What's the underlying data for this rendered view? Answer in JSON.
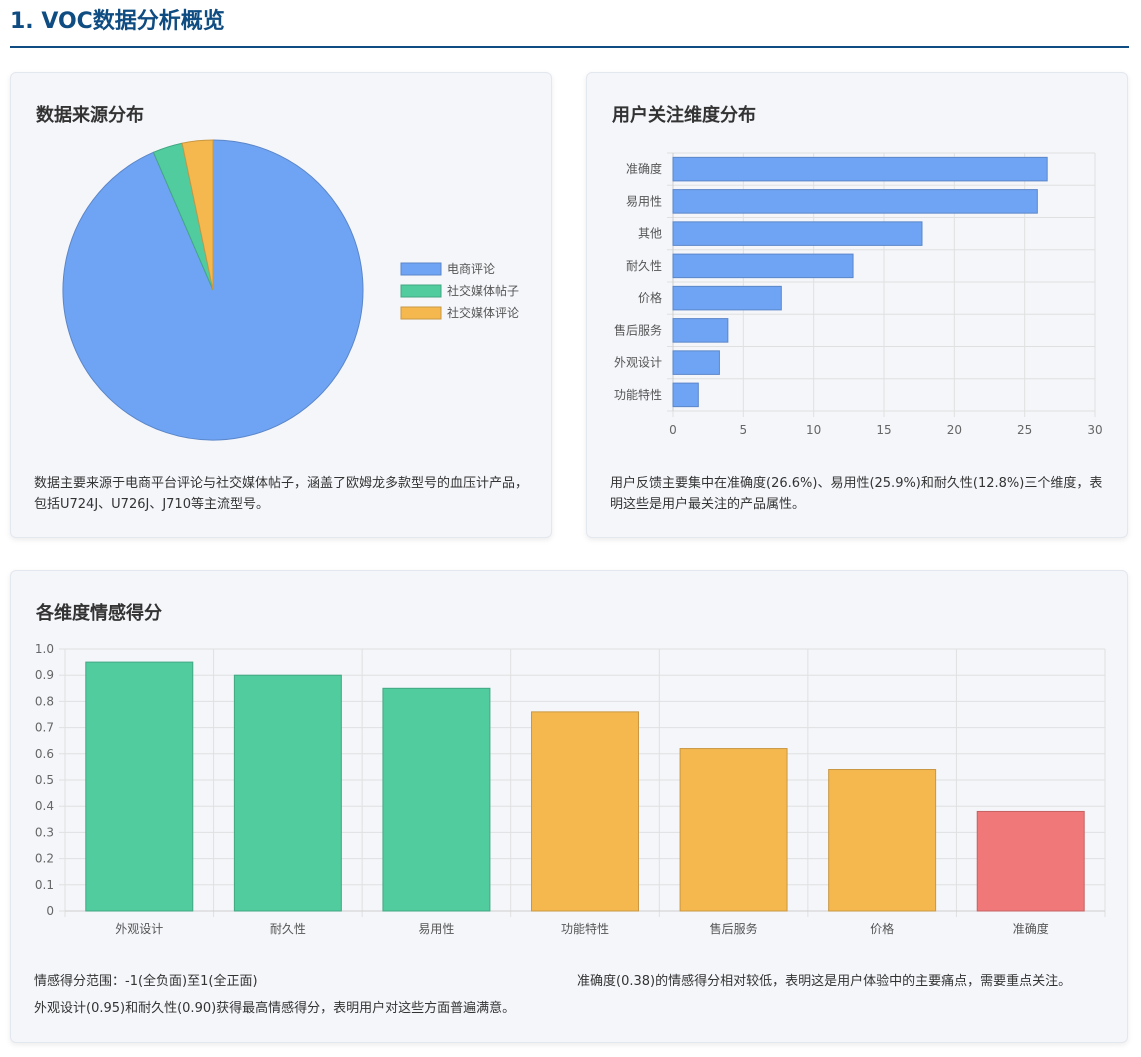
{
  "page": {
    "title": "1. VOC数据分析概览"
  },
  "colors": {
    "title": "#0f4c81",
    "blue": "#6fa4f4",
    "green": "#50cc9f",
    "orange": "#f5b84f",
    "red": "#f07878"
  },
  "source_card": {
    "title": "数据来源分布",
    "description": "数据主要来源于电商平台评论与社交媒体帖子，涵盖了欧姆龙多款型号的血压计产品，包括U724J、U726J、J710等主流型号。"
  },
  "dimension_card": {
    "title": "用户关注维度分布",
    "description": "用户反馈主要集中在准确度(26.6%)、易用性(25.9%)和耐久性(12.8%)三个维度，表明这些是用户最关注的产品属性。"
  },
  "sentiment_card": {
    "title": "各维度情感得分",
    "note_range": "情感得分范围：-1(全负面)至1(全正面)",
    "note_high": "外观设计(0.95)和耐久性(0.90)获得最高情感得分，表明用户对这些方面普遍满意。",
    "note_low": "准确度(0.38)的情感得分相对较低，表明这是用户体验中的主要痛点，需要重点关注。"
  },
  "chart_data": [
    {
      "type": "pie",
      "categories": [
        "电商评论",
        "社交媒体帖子",
        "社交媒体评论"
      ],
      "values": [
        93.5,
        3.2,
        3.3
      ],
      "colors": [
        "#6fa4f4",
        "#50cc9f",
        "#f5b84f"
      ],
      "legend": "right"
    },
    {
      "type": "bar",
      "orientation": "horizontal",
      "categories": [
        "准确度",
        "易用性",
        "其他",
        "耐久性",
        "价格",
        "售后服务",
        "外观设计",
        "功能特性"
      ],
      "values": [
        26.6,
        25.9,
        17.7,
        12.8,
        7.7,
        3.9,
        3.3,
        1.8
      ],
      "xlim": [
        0,
        30
      ],
      "xticks": [
        0,
        5,
        10,
        15,
        20,
        25,
        30
      ],
      "grid": true,
      "color": "#6fa4f4"
    },
    {
      "type": "bar",
      "categories": [
        "外观设计",
        "耐久性",
        "易用性",
        "功能特性",
        "售后服务",
        "价格",
        "准确度"
      ],
      "values": [
        0.95,
        0.9,
        0.85,
        0.76,
        0.62,
        0.54,
        0.38
      ],
      "bar_colors": [
        "#50cc9f",
        "#50cc9f",
        "#50cc9f",
        "#f5b84f",
        "#f5b84f",
        "#f5b84f",
        "#f07878"
      ],
      "ylim": [
        0,
        1.0
      ],
      "yticks": [
        "0",
        "0.1",
        "0.2",
        "0.3",
        "0.4",
        "0.5",
        "0.6",
        "0.7",
        "0.8",
        "0.9",
        "1.0"
      ],
      "grid": true
    }
  ]
}
